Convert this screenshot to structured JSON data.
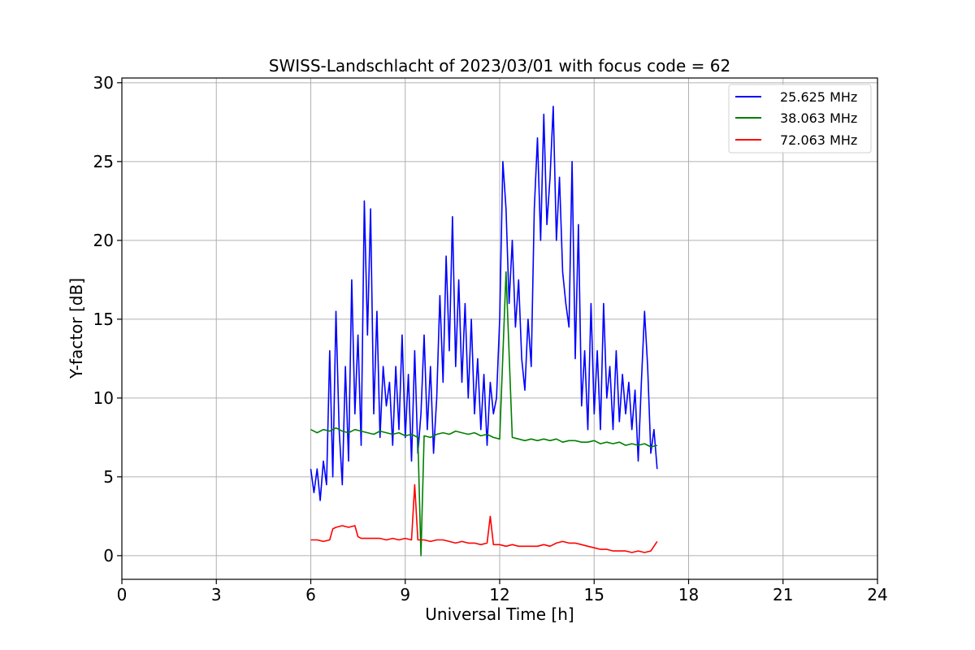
{
  "chart_data": {
    "type": "line",
    "title": "SWISS-Landschlacht of 2023/03/01 with focus code = 62",
    "xlabel": "Universal Time [h]",
    "ylabel": "Y-factor [dB]",
    "xlim": [
      0,
      24
    ],
    "ylim": [
      -1.5,
      30.3
    ],
    "xticks": [
      0,
      3,
      6,
      9,
      12,
      15,
      18,
      21,
      24
    ],
    "yticks": [
      0,
      5,
      10,
      15,
      20,
      25,
      30
    ],
    "grid": true,
    "legend_position": "top-right",
    "series": [
      {
        "name": "25.625 MHz",
        "color": "#0000ff",
        "x": [
          6.0,
          6.1,
          6.2,
          6.3,
          6.4,
          6.5,
          6.6,
          6.7,
          6.8,
          6.9,
          7.0,
          7.1,
          7.2,
          7.3,
          7.4,
          7.5,
          7.6,
          7.7,
          7.8,
          7.9,
          8.0,
          8.1,
          8.2,
          8.3,
          8.4,
          8.5,
          8.6,
          8.7,
          8.8,
          8.9,
          9.0,
          9.1,
          9.2,
          9.3,
          9.4,
          9.5,
          9.6,
          9.7,
          9.8,
          9.9,
          10.0,
          10.1,
          10.2,
          10.3,
          10.4,
          10.5,
          10.6,
          10.7,
          10.8,
          10.9,
          11.0,
          11.1,
          11.2,
          11.3,
          11.4,
          11.5,
          11.6,
          11.7,
          11.8,
          11.9,
          12.0,
          12.1,
          12.2,
          12.3,
          12.4,
          12.5,
          12.6,
          12.7,
          12.8,
          12.9,
          13.0,
          13.1,
          13.2,
          13.3,
          13.4,
          13.5,
          13.6,
          13.7,
          13.8,
          13.9,
          14.0,
          14.1,
          14.2,
          14.3,
          14.4,
          14.5,
          14.6,
          14.7,
          14.8,
          14.9,
          15.0,
          15.1,
          15.2,
          15.3,
          15.4,
          15.5,
          15.6,
          15.7,
          15.8,
          15.9,
          16.0,
          16.1,
          16.2,
          16.3,
          16.4,
          16.5,
          16.6,
          16.7,
          16.8,
          16.9,
          17.0
        ],
        "values": [
          5.5,
          4.0,
          5.5,
          3.5,
          6.0,
          4.5,
          13.0,
          5.0,
          15.5,
          8.0,
          4.5,
          12.0,
          6.0,
          17.5,
          9.0,
          14.0,
          7.0,
          22.5,
          14.0,
          22.0,
          9.0,
          15.5,
          7.5,
          12.0,
          9.5,
          11.0,
          7.0,
          12.0,
          8.0,
          14.0,
          7.5,
          11.5,
          6.0,
          13.0,
          6.5,
          9.0,
          14.0,
          8.0,
          12.0,
          6.5,
          10.0,
          16.5,
          11.0,
          19.0,
          13.0,
          21.5,
          12.0,
          17.5,
          11.0,
          16.0,
          10.0,
          15.0,
          9.0,
          12.5,
          8.0,
          11.5,
          7.0,
          11.0,
          9.0,
          10.0,
          15.0,
          25.0,
          22.0,
          16.0,
          20.0,
          14.5,
          17.5,
          12.5,
          10.5,
          15.0,
          12.0,
          22.0,
          26.5,
          20.0,
          28.0,
          21.0,
          24.0,
          28.5,
          20.0,
          24.0,
          18.0,
          16.0,
          14.5,
          25.0,
          12.5,
          21.0,
          9.5,
          13.0,
          8.0,
          16.0,
          9.0,
          13.0,
          8.0,
          16.0,
          10.0,
          12.0,
          8.0,
          13.0,
          8.5,
          11.5,
          9.0,
          11.0,
          8.0,
          10.5,
          6.0,
          11.0,
          15.5,
          12.0,
          6.5,
          8.0,
          5.5
        ]
      },
      {
        "name": "38.063 MHz",
        "color": "#008000",
        "x": [
          6.0,
          6.2,
          6.4,
          6.6,
          6.8,
          7.0,
          7.2,
          7.4,
          7.6,
          7.8,
          8.0,
          8.2,
          8.4,
          8.6,
          8.8,
          9.0,
          9.2,
          9.4,
          9.5,
          9.6,
          9.8,
          10.0,
          10.2,
          10.4,
          10.6,
          10.8,
          11.0,
          11.2,
          11.4,
          11.6,
          11.8,
          12.0,
          12.2,
          12.4,
          12.6,
          12.8,
          13.0,
          13.2,
          13.4,
          13.6,
          13.8,
          14.0,
          14.2,
          14.4,
          14.6,
          14.8,
          15.0,
          15.2,
          15.4,
          15.6,
          15.8,
          16.0,
          16.2,
          16.4,
          16.6,
          16.8,
          17.0
        ],
        "values": [
          8.0,
          7.8,
          8.0,
          7.9,
          8.1,
          7.9,
          7.8,
          8.0,
          7.9,
          7.8,
          7.7,
          7.9,
          7.8,
          7.7,
          7.8,
          7.6,
          7.7,
          7.5,
          0.0,
          7.6,
          7.5,
          7.7,
          7.8,
          7.7,
          7.9,
          7.8,
          7.7,
          7.8,
          7.6,
          7.7,
          7.5,
          7.4,
          18.0,
          7.5,
          7.4,
          7.3,
          7.4,
          7.3,
          7.4,
          7.3,
          7.4,
          7.2,
          7.3,
          7.3,
          7.2,
          7.2,
          7.3,
          7.1,
          7.2,
          7.1,
          7.2,
          7.0,
          7.1,
          7.0,
          7.1,
          6.9,
          7.0
        ]
      },
      {
        "name": "72.063 MHz",
        "color": "#ff0000",
        "x": [
          6.0,
          6.2,
          6.4,
          6.6,
          6.7,
          6.8,
          7.0,
          7.2,
          7.4,
          7.5,
          7.6,
          7.8,
          8.0,
          8.2,
          8.4,
          8.6,
          8.8,
          9.0,
          9.2,
          9.3,
          9.4,
          9.6,
          9.8,
          10.0,
          10.2,
          10.4,
          10.6,
          10.8,
          11.0,
          11.2,
          11.4,
          11.6,
          11.7,
          11.8,
          12.0,
          12.2,
          12.4,
          12.6,
          12.8,
          13.0,
          13.2,
          13.4,
          13.6,
          13.8,
          14.0,
          14.2,
          14.4,
          14.6,
          14.8,
          15.0,
          15.2,
          15.4,
          15.6,
          15.8,
          16.0,
          16.2,
          16.4,
          16.6,
          16.8,
          17.0
        ],
        "values": [
          1.0,
          1.0,
          0.9,
          1.0,
          1.7,
          1.8,
          1.9,
          1.8,
          1.9,
          1.2,
          1.1,
          1.1,
          1.1,
          1.1,
          1.0,
          1.1,
          1.0,
          1.1,
          1.0,
          4.5,
          1.0,
          1.0,
          0.9,
          1.0,
          1.0,
          0.9,
          0.8,
          0.9,
          0.8,
          0.8,
          0.7,
          0.8,
          2.5,
          0.7,
          0.7,
          0.6,
          0.7,
          0.6,
          0.6,
          0.6,
          0.6,
          0.7,
          0.6,
          0.8,
          0.9,
          0.8,
          0.8,
          0.7,
          0.6,
          0.5,
          0.4,
          0.4,
          0.3,
          0.3,
          0.3,
          0.2,
          0.3,
          0.2,
          0.3,
          0.9
        ]
      }
    ]
  }
}
